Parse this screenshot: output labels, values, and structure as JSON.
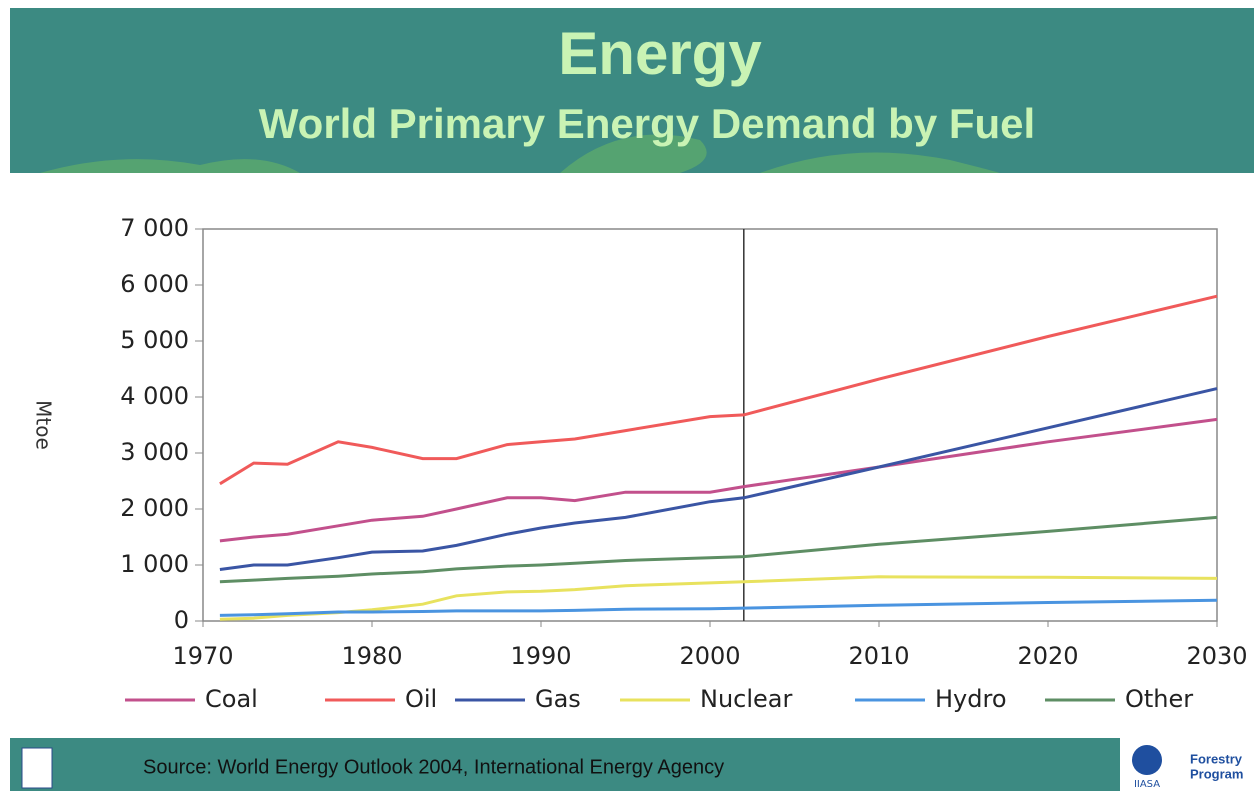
{
  "chart_data": {
    "type": "line",
    "title": "Energy",
    "subtitle": "World Primary Energy Demand by Fuel",
    "y_label": "Mtoe",
    "source": "Source: World Energy Outlook 2004, International Energy Agency",
    "logo_right": [
      "Forestry",
      "Program"
    ],
    "logo_right_org": "IIASA",
    "x": [
      1971,
      1973,
      1975,
      1978,
      1980,
      1983,
      1985,
      1988,
      1990,
      1992,
      1995,
      2000,
      2002,
      2010,
      2020,
      2030
    ],
    "series": [
      {
        "name": "Coal",
        "color": "#c2508c",
        "values": [
          1430,
          1500,
          1550,
          1700,
          1800,
          1870,
          2000,
          2200,
          2200,
          2150,
          2300,
          2300,
          2400,
          2750,
          3200,
          3600
        ]
      },
      {
        "name": "Oil",
        "color": "#f05a5a",
        "values": [
          2450,
          2820,
          2800,
          3200,
          3100,
          2900,
          2900,
          3150,
          3200,
          3250,
          3400,
          3650,
          3680,
          4320,
          5080,
          5800
        ]
      },
      {
        "name": "Gas",
        "color": "#3a55a4",
        "values": [
          920,
          1000,
          1000,
          1130,
          1230,
          1250,
          1350,
          1550,
          1660,
          1750,
          1850,
          2130,
          2200,
          2750,
          3450,
          4150
        ]
      },
      {
        "name": "Nuclear",
        "color": "#e8e25e",
        "values": [
          30,
          50,
          100,
          150,
          200,
          300,
          450,
          520,
          530,
          560,
          630,
          680,
          700,
          790,
          780,
          760
        ]
      },
      {
        "name": "Hydro",
        "color": "#4a94e0",
        "values": [
          100,
          110,
          130,
          160,
          160,
          170,
          180,
          180,
          180,
          190,
          210,
          220,
          230,
          280,
          330,
          370
        ]
      },
      {
        "name": "Other",
        "color": "#5e8e64",
        "values": [
          700,
          730,
          760,
          800,
          840,
          880,
          930,
          980,
          1000,
          1030,
          1080,
          1130,
          1150,
          1370,
          1600,
          1850
        ]
      }
    ],
    "xlim": [
      1970,
      2030
    ],
    "xticks": [
      1970,
      1980,
      1990,
      2000,
      2010,
      2020,
      2030
    ],
    "ylim": [
      0,
      7000
    ],
    "yticks": [
      0,
      {
        "value": 1000,
        "label": "1 000"
      },
      {
        "value": 2000,
        "label": "2 000"
      },
      {
        "value": 3000,
        "label": "3 000"
      },
      {
        "value": 4000,
        "label": "4 000"
      },
      {
        "value": 5000,
        "label": "5 000"
      },
      {
        "value": 6000,
        "label": "6 000"
      },
      {
        "value": 7000,
        "label": "7 000"
      }
    ],
    "divider_x": 2002
  }
}
